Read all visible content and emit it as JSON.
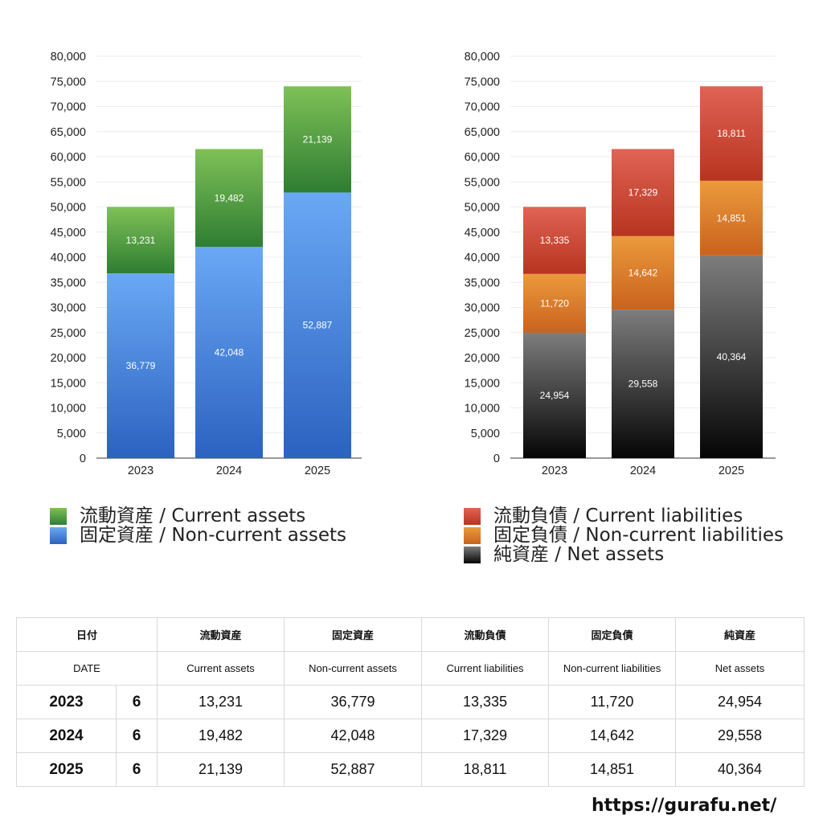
{
  "chart_data": [
    {
      "type": "bar",
      "stacked": true,
      "categories": [
        "2023",
        "2024",
        "2025"
      ],
      "ylim": [
        0,
        80000
      ],
      "ytick_step": 5000,
      "grid": true,
      "legend_position": "bottom",
      "series": [
        {
          "name": "固定資産 / Non-current assets",
          "values": [
            36779,
            42048,
            52887
          ],
          "color_top": "#6aa8f5",
          "color_bottom": "#2c62c0"
        },
        {
          "name": "流動資産 / Current assets",
          "values": [
            13231,
            19482,
            21139
          ],
          "color_top": "#7fc157",
          "color_bottom": "#2e7d32"
        }
      ],
      "legend_order": [
        1,
        0
      ]
    },
    {
      "type": "bar",
      "stacked": true,
      "categories": [
        "2023",
        "2024",
        "2025"
      ],
      "ylim": [
        0,
        80000
      ],
      "ytick_step": 5000,
      "grid": true,
      "legend_position": "bottom",
      "series": [
        {
          "name": "純資産 / Net assets",
          "values": [
            24954,
            29558,
            40364
          ],
          "color_top": "#7d7d7d",
          "color_bottom": "#050505"
        },
        {
          "name": "固定負債 / Non-current liabilities",
          "values": [
            11720,
            14642,
            14851
          ],
          "color_top": "#eb9a3c",
          "color_bottom": "#c9621e"
        },
        {
          "name": "流動負債 / Current liabilities",
          "values": [
            13335,
            17329,
            18811
          ],
          "color_top": "#e06355",
          "color_bottom": "#b8341f"
        }
      ],
      "legend_order": [
        2,
        1,
        0
      ]
    }
  ],
  "table": {
    "header_jp": [
      "日付",
      "",
      "流動資産",
      "固定資産",
      "流動負債",
      "固定負債",
      "純資産"
    ],
    "header_en": [
      "DATE",
      "",
      "Current assets",
      "Non-current assets",
      "Current liabilities",
      "Non-current liabilities",
      "Net assets"
    ],
    "rows": [
      [
        "2023",
        "6",
        "13,231",
        "36,779",
        "13,335",
        "11,720",
        "24,954"
      ],
      [
        "2024",
        "6",
        "19,482",
        "42,048",
        "17,329",
        "14,642",
        "29,558"
      ],
      [
        "2025",
        "6",
        "21,139",
        "52,887",
        "18,811",
        "14,851",
        "40,364"
      ]
    ]
  },
  "footer": {
    "url": "https://gurafu.net/"
  }
}
